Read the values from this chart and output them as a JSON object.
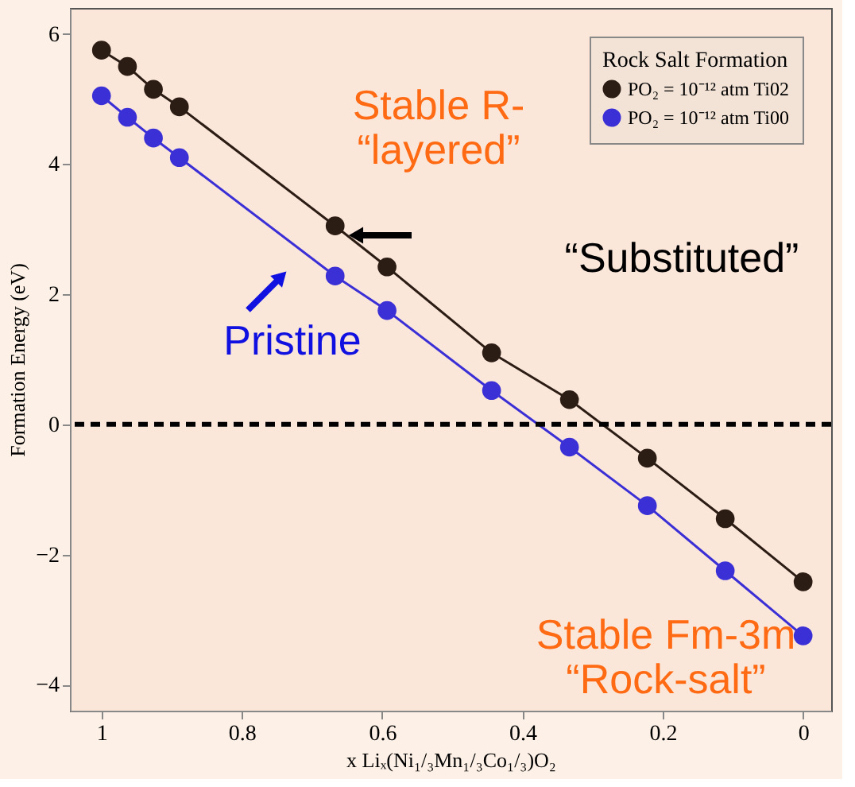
{
  "chart_data": {
    "type": "line",
    "xlabel": "x Liₓ(Ni₁/₃Mn₁/₃Co₁/₃)O₂",
    "ylabel": "Formation Energy (eV)",
    "legend_title": "Rock Salt Formation",
    "x": [
      1,
      0.963,
      0.926,
      0.889,
      0.667,
      0.593,
      0.444,
      0.333,
      0.222,
      0.111,
      0
    ],
    "series": [
      {
        "name": "PO₂ = 10⁻¹² atm Ti02",
        "color": "#2b1d14",
        "values": [
          5.75,
          5.5,
          5.15,
          4.88,
          3.05,
          2.42,
          1.1,
          0.38,
          -0.52,
          -1.45,
          -2.42
        ]
      },
      {
        "name": "PO₂ = 10⁻¹² atm Ti00",
        "color": "#3b2fd6",
        "values": [
          5.05,
          4.72,
          4.4,
          4.1,
          2.28,
          1.75,
          0.52,
          -0.35,
          -1.25,
          -2.25,
          -3.25
        ]
      }
    ],
    "xlim": [
      1.045,
      -0.04
    ],
    "xticks": [
      1,
      0.8,
      0.6,
      0.4,
      0.2,
      0
    ],
    "ylim": [
      -4.4,
      6.4
    ],
    "yticks": [
      -4,
      -2,
      0,
      2,
      4,
      6
    ],
    "ref_lines": [
      {
        "axis": "y",
        "value": 0,
        "color": "#000000",
        "line_style": "dashed"
      }
    ],
    "annotations": [
      "Stable R-\n“layered”",
      "“Substituted”",
      "Pristine",
      "Stable Fm-3m\n“Rock-salt”"
    ],
    "grid": false,
    "legend": "top right",
    "marker": "circle",
    "line_style": "solid"
  }
}
